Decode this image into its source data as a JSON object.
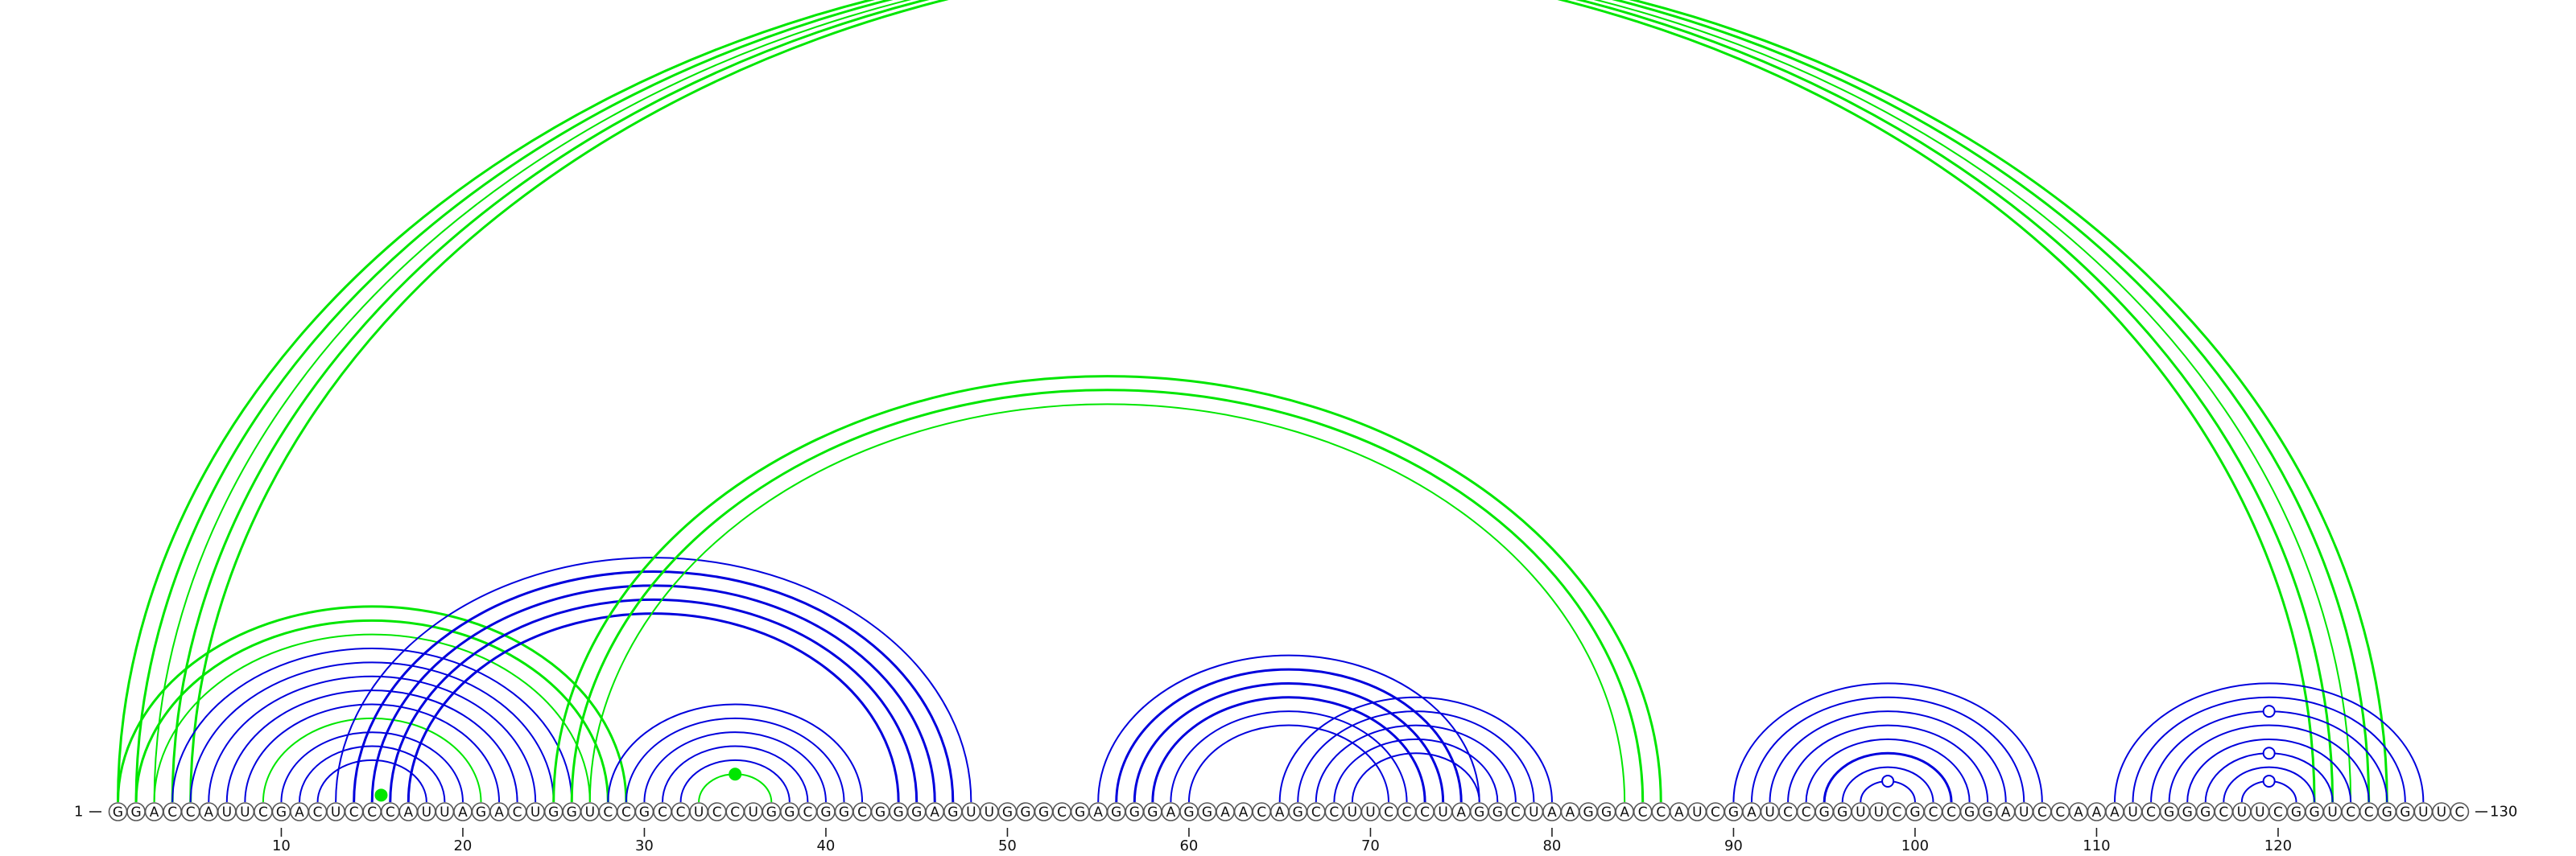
{
  "sequence": "GGACCAUUCGACUCCCAUUAGACUGGUCCGCCUCCUGGCGGCGGGAGUUGGGCGAGGGAGGAACAGCCUUCCCUAGGCUAAGGACCAUCGAUCCGGUUCGCCGGAUCCAAAUCGGGCUUCGGUCCGGUUC",
  "start_label": "1",
  "end_label": "130",
  "tick_labels": [
    "10",
    "20",
    "30",
    "40",
    "50",
    "60",
    "70",
    "80",
    "90",
    "100",
    "110",
    "120"
  ],
  "colors": {
    "green": "#00e600",
    "blue": "#0000dd"
  },
  "arcs": [
    {
      "i": 1,
      "j": 122,
      "color": "green",
      "w": 3
    },
    {
      "i": 2,
      "j": 123,
      "color": "green",
      "w": 3
    },
    {
      "i": 3,
      "j": 124,
      "color": "green",
      "w": 2
    },
    {
      "i": 4,
      "j": 125,
      "color": "green",
      "w": 3
    },
    {
      "i": 5,
      "j": 126,
      "color": "green",
      "w": 3
    },
    {
      "i": 1,
      "j": 29,
      "color": "green",
      "w": 3
    },
    {
      "i": 2,
      "j": 28,
      "color": "green",
      "w": 3
    },
    {
      "i": 3,
      "j": 27,
      "color": "green",
      "w": 2
    },
    {
      "i": 4,
      "j": 26,
      "color": "blue",
      "w": 2
    },
    {
      "i": 5,
      "j": 25,
      "color": "blue",
      "w": 2
    },
    {
      "i": 6,
      "j": 24,
      "color": "blue",
      "w": 2
    },
    {
      "i": 7,
      "j": 23,
      "color": "blue",
      "w": 2
    },
    {
      "i": 8,
      "j": 22,
      "color": "blue",
      "w": 2
    },
    {
      "i": 9,
      "j": 21,
      "color": "green",
      "w": 2
    },
    {
      "i": 10,
      "j": 20,
      "color": "blue",
      "w": 2
    },
    {
      "i": 11,
      "j": 19,
      "color": "blue",
      "w": 2
    },
    {
      "i": 12,
      "j": 18,
      "color": "blue",
      "w": 2
    },
    {
      "i": 13,
      "j": 48,
      "color": "blue",
      "w": 2
    },
    {
      "i": 14,
      "j": 47,
      "color": "blue",
      "w": 3
    },
    {
      "i": 15,
      "j": 46,
      "color": "blue",
      "w": 3
    },
    {
      "i": 16,
      "j": 45,
      "color": "blue",
      "w": 3
    },
    {
      "i": 17,
      "j": 44,
      "color": "blue",
      "w": 3
    },
    {
      "i": 25,
      "j": 86,
      "color": "green",
      "w": 3
    },
    {
      "i": 26,
      "j": 85,
      "color": "green",
      "w": 3
    },
    {
      "i": 27,
      "j": 84,
      "color": "green",
      "w": 2
    },
    {
      "i": 28,
      "j": 42,
      "color": "blue",
      "w": 2
    },
    {
      "i": 29,
      "j": 41,
      "color": "blue",
      "w": 2
    },
    {
      "i": 30,
      "j": 40,
      "color": "blue",
      "w": 2
    },
    {
      "i": 31,
      "j": 39,
      "color": "blue",
      "w": 2
    },
    {
      "i": 32,
      "j": 38,
      "color": "blue",
      "w": 2
    },
    {
      "i": 33,
      "j": 37,
      "color": "green",
      "w": 2
    },
    {
      "i": 55,
      "j": 76,
      "color": "blue",
      "w": 2
    },
    {
      "i": 56,
      "j": 75,
      "color": "blue",
      "w": 3
    },
    {
      "i": 57,
      "j": 74,
      "color": "blue",
      "w": 3
    },
    {
      "i": 58,
      "j": 73,
      "color": "blue",
      "w": 3
    },
    {
      "i": 59,
      "j": 72,
      "color": "blue",
      "w": 2
    },
    {
      "i": 60,
      "j": 71,
      "color": "blue",
      "w": 2
    },
    {
      "i": 65,
      "j": 80,
      "color": "blue",
      "w": 2
    },
    {
      "i": 66,
      "j": 79,
      "color": "blue",
      "w": 2
    },
    {
      "i": 67,
      "j": 78,
      "color": "blue",
      "w": 2
    },
    {
      "i": 68,
      "j": 77,
      "color": "blue",
      "w": 2
    },
    {
      "i": 69,
      "j": 76,
      "color": "blue",
      "w": 2
    },
    {
      "i": 90,
      "j": 107,
      "color": "blue",
      "w": 2
    },
    {
      "i": 91,
      "j": 106,
      "color": "blue",
      "w": 2
    },
    {
      "i": 92,
      "j": 105,
      "color": "blue",
      "w": 2
    },
    {
      "i": 93,
      "j": 104,
      "color": "blue",
      "w": 2
    },
    {
      "i": 94,
      "j": 103,
      "color": "blue",
      "w": 2
    },
    {
      "i": 95,
      "j": 102,
      "color": "blue",
      "w": 3
    },
    {
      "i": 96,
      "j": 101,
      "color": "blue",
      "w": 2
    },
    {
      "i": 97,
      "j": 100,
      "color": "blue",
      "w": 2
    },
    {
      "i": 111,
      "j": 128,
      "color": "blue",
      "w": 2
    },
    {
      "i": 112,
      "j": 127,
      "color": "blue",
      "w": 2
    },
    {
      "i": 113,
      "j": 126,
      "color": "blue",
      "w": 2
    },
    {
      "i": 114,
      "j": 125,
      "color": "blue",
      "w": 2
    },
    {
      "i": 115,
      "j": 124,
      "color": "blue",
      "w": 2
    },
    {
      "i": 116,
      "j": 123,
      "color": "blue",
      "w": 2
    },
    {
      "i": 117,
      "j": 122,
      "color": "blue",
      "w": 2
    },
    {
      "i": 118,
      "j": 121,
      "color": "blue",
      "w": 2
    }
  ],
  "markers": [
    {
      "i": 33,
      "j": 37,
      "style": "filled",
      "color": "green"
    },
    {
      "i": 15,
      "j": 16,
      "style": "filled",
      "color": "green"
    },
    {
      "i": 97,
      "j": 100,
      "style": "open",
      "color": "blue"
    },
    {
      "i": 118,
      "j": 121,
      "style": "open",
      "color": "blue"
    },
    {
      "i": 116,
      "j": 123,
      "style": "open",
      "color": "blue"
    },
    {
      "i": 113,
      "j": 126,
      "style": "open",
      "color": "blue"
    }
  ]
}
